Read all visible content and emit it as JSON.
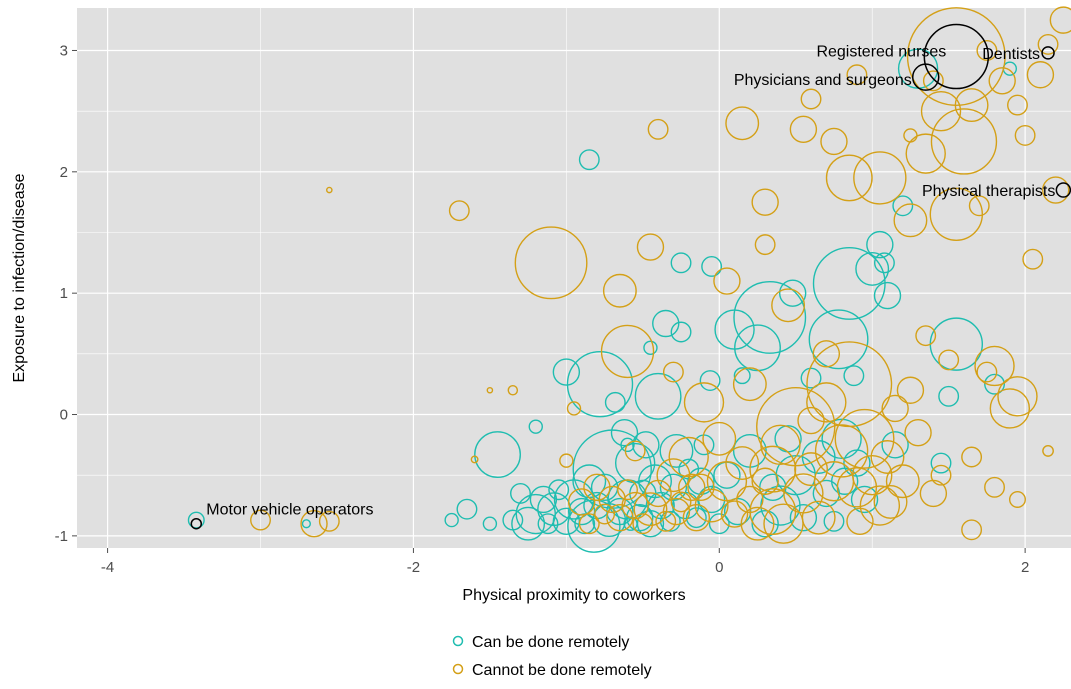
{
  "chart_data": {
    "type": "scatter",
    "xlabel": "Physical proximity to coworkers",
    "ylabel": "Exposure to infection/disease",
    "xlim": [
      -4.2,
      2.3
    ],
    "ylim": [
      -1.1,
      3.35
    ],
    "x_ticks": [
      -4,
      -2,
      0,
      2
    ],
    "x_tick_labels": [
      "-4",
      "-2",
      "0",
      "2"
    ],
    "y_ticks": [
      -1,
      0,
      1,
      2,
      3
    ],
    "y_tick_labels": [
      "-1",
      "0",
      "1",
      "2",
      "3"
    ],
    "grid": true,
    "legend_position": "bottom",
    "colors": {
      "remote": "#1fbdb0",
      "not_remote": "#d4a017",
      "highlight": "#000000",
      "panel": "#e0e0e0",
      "grid": "#ffffff"
    },
    "series": [
      {
        "name": "Can be done remotely",
        "color": "#1fbdb0",
        "points": [
          [
            -3.42,
            -0.87,
            1.2
          ],
          [
            -2.7,
            -0.9,
            0.6
          ],
          [
            -1.75,
            -0.87,
            1.0
          ],
          [
            -1.65,
            -0.78,
            1.5
          ],
          [
            -1.5,
            -0.9,
            1.0
          ],
          [
            -1.45,
            -0.33,
            3.5
          ],
          [
            -1.35,
            -0.87,
            1.5
          ],
          [
            -1.3,
            -0.65,
            1.5
          ],
          [
            -1.25,
            -0.9,
            2.5
          ],
          [
            -1.2,
            -0.82,
            3.0
          ],
          [
            -1.15,
            -0.7,
            2.0
          ],
          [
            -1.12,
            -0.9,
            1.5
          ],
          [
            -1.08,
            -0.78,
            2.5
          ],
          [
            -1.05,
            -0.62,
            1.5
          ],
          [
            -1.0,
            -0.88,
            2.0
          ],
          [
            -0.95,
            -0.7,
            3.0
          ],
          [
            -0.9,
            -0.8,
            2.0
          ],
          [
            -0.88,
            -0.9,
            1.5
          ],
          [
            -0.85,
            -0.55,
            2.5
          ],
          [
            -0.82,
            -0.92,
            4.0
          ],
          [
            -0.8,
            -0.75,
            2.0
          ],
          [
            -0.78,
            0.25,
            5.0
          ],
          [
            -0.75,
            -0.6,
            2.0
          ],
          [
            -0.72,
            -0.87,
            2.5
          ],
          [
            -0.7,
            -0.45,
            6.0
          ],
          [
            -0.68,
            0.1,
            1.5
          ],
          [
            -0.65,
            -0.8,
            2.0
          ],
          [
            -0.62,
            -0.15,
            2.0
          ],
          [
            -0.6,
            -0.7,
            3.0
          ],
          [
            -0.58,
            -0.9,
            1.0
          ],
          [
            -0.55,
            -0.4,
            3.0
          ],
          [
            -0.52,
            -0.85,
            2.0
          ],
          [
            -0.5,
            -0.65,
            2.0
          ],
          [
            -0.48,
            -0.25,
            2.0
          ],
          [
            -0.45,
            -0.9,
            2.0
          ],
          [
            -0.42,
            -0.55,
            2.5
          ],
          [
            -0.4,
            0.15,
            3.5
          ],
          [
            -0.38,
            -0.75,
            2.0
          ],
          [
            -0.35,
            0.75,
            2.0
          ],
          [
            -0.32,
            -0.88,
            1.5
          ],
          [
            -0.3,
            -0.6,
            2.0
          ],
          [
            -0.28,
            -0.3,
            2.5
          ],
          [
            -0.25,
            0.68,
            1.5
          ],
          [
            -0.22,
            -0.75,
            2.0
          ],
          [
            -0.2,
            -0.45,
            1.5
          ],
          [
            -0.15,
            -0.85,
            1.5
          ],
          [
            -0.12,
            -0.55,
            2.0
          ],
          [
            -0.1,
            -0.25,
            1.5
          ],
          [
            -0.06,
            0.28,
            1.5
          ],
          [
            -0.05,
            -0.7,
            2.0
          ],
          [
            0.0,
            -0.9,
            1.5
          ],
          [
            0.05,
            -0.5,
            2.0
          ],
          [
            0.1,
            0.7,
            3.0
          ],
          [
            0.12,
            -0.8,
            2.0
          ],
          [
            0.15,
            0.32,
            1.2
          ],
          [
            0.2,
            -0.3,
            2.5
          ],
          [
            0.25,
            0.55,
            3.5
          ],
          [
            0.3,
            -0.9,
            2.0
          ],
          [
            0.33,
            0.8,
            5.5
          ],
          [
            0.35,
            -0.6,
            2.0
          ],
          [
            0.4,
            -0.75,
            3.0
          ],
          [
            0.45,
            -0.2,
            2.0
          ],
          [
            0.48,
            1.0,
            2.0
          ],
          [
            0.5,
            -0.5,
            3.0
          ],
          [
            0.55,
            -0.85,
            2.0
          ],
          [
            0.6,
            0.3,
            1.5
          ],
          [
            0.65,
            -0.35,
            2.5
          ],
          [
            0.7,
            -0.65,
            2.0
          ],
          [
            0.75,
            -0.88,
            1.5
          ],
          [
            0.78,
            0.62,
            4.5
          ],
          [
            0.8,
            -0.2,
            3.0
          ],
          [
            0.82,
            -0.55,
            2.0
          ],
          [
            0.85,
            1.08,
            5.5
          ],
          [
            0.88,
            0.32,
            1.5
          ],
          [
            0.9,
            -0.4,
            2.0
          ],
          [
            0.95,
            -0.7,
            2.0
          ],
          [
            1.0,
            1.2,
            2.5
          ],
          [
            1.05,
            1.4,
            2.0
          ],
          [
            1.1,
            0.98,
            2.0
          ],
          [
            1.15,
            -0.25,
            2.0
          ],
          [
            1.2,
            1.72,
            1.5
          ],
          [
            1.3,
            2.85,
            3.0
          ],
          [
            1.45,
            -0.4,
            1.5
          ],
          [
            1.5,
            0.15,
            1.5
          ],
          [
            1.55,
            0.58,
            4.0
          ],
          [
            1.8,
            0.25,
            1.5
          ],
          [
            1.9,
            2.85,
            1.0
          ],
          [
            -0.45,
            0.55,
            1.0
          ],
          [
            -0.6,
            -0.25,
            1.0
          ],
          [
            -1.2,
            -0.1,
            1.0
          ],
          [
            -1.0,
            0.35,
            2.0
          ],
          [
            -0.85,
            2.1,
            1.5
          ],
          [
            -0.25,
            1.25,
            1.5
          ],
          [
            -0.05,
            1.22,
            1.5
          ],
          [
            1.08,
            1.25,
            1.5
          ]
        ]
      },
      {
        "name": "Cannot be done remotely",
        "color": "#d4a017",
        "points": [
          [
            -3.0,
            -0.87,
            1.5
          ],
          [
            -2.65,
            -0.9,
            2.0
          ],
          [
            -2.55,
            1.85,
            0.4
          ],
          [
            -2.55,
            -0.88,
            1.5
          ],
          [
            -1.7,
            1.68,
            1.5
          ],
          [
            -1.6,
            -0.37,
            0.5
          ],
          [
            -1.5,
            0.2,
            0.4
          ],
          [
            -1.35,
            0.2,
            0.7
          ],
          [
            -1.0,
            -0.38,
            1.0
          ],
          [
            -0.95,
            0.05,
            1.0
          ],
          [
            -0.9,
            -0.72,
            2.0
          ],
          [
            -0.85,
            -0.9,
            1.5
          ],
          [
            -0.8,
            -0.6,
            2.0
          ],
          [
            -0.75,
            -0.82,
            1.5
          ],
          [
            -0.7,
            -0.7,
            2.0
          ],
          [
            -0.65,
            -0.85,
            2.0
          ],
          [
            -0.6,
            -0.62,
            1.5
          ],
          [
            -0.55,
            -0.75,
            2.0
          ],
          [
            -0.5,
            -0.9,
            1.5
          ],
          [
            -0.45,
            -0.78,
            2.5
          ],
          [
            -0.4,
            -0.65,
            2.0
          ],
          [
            -0.35,
            -0.88,
            1.5
          ],
          [
            -0.3,
            -0.5,
            2.5
          ],
          [
            -0.28,
            -0.8,
            2.0
          ],
          [
            -0.25,
            -0.72,
            1.5
          ],
          [
            -0.2,
            -0.35,
            3.0
          ],
          [
            -0.15,
            -0.85,
            2.0
          ],
          [
            -0.12,
            -0.6,
            2.0
          ],
          [
            -0.1,
            0.1,
            3.0
          ],
          [
            -0.05,
            -0.75,
            2.5
          ],
          [
            0.0,
            -0.2,
            2.5
          ],
          [
            0.05,
            -0.55,
            3.0
          ],
          [
            0.1,
            -0.82,
            2.0
          ],
          [
            0.15,
            -0.4,
            2.5
          ],
          [
            0.2,
            -0.7,
            2.0
          ],
          [
            0.25,
            -0.9,
            2.5
          ],
          [
            0.3,
            -0.55,
            2.0
          ],
          [
            0.35,
            -0.8,
            3.5
          ],
          [
            0.4,
            -0.25,
            3.0
          ],
          [
            0.45,
            0.9,
            2.5
          ],
          [
            0.5,
            -0.1,
            6.0
          ],
          [
            0.55,
            -0.65,
            3.0
          ],
          [
            0.6,
            -0.45,
            2.5
          ],
          [
            0.65,
            -0.85,
            2.5
          ],
          [
            0.7,
            0.5,
            2.0
          ],
          [
            0.75,
            -0.55,
            3.0
          ],
          [
            0.8,
            -0.3,
            4.0
          ],
          [
            0.85,
            0.25,
            6.5
          ],
          [
            0.9,
            -0.6,
            3.0
          ],
          [
            0.95,
            -0.2,
            4.5
          ],
          [
            1.0,
            -0.5,
            3.0
          ],
          [
            1.05,
            -0.75,
            3.0
          ],
          [
            1.1,
            -0.35,
            2.5
          ],
          [
            1.15,
            0.05,
            2.0
          ],
          [
            1.2,
            -0.55,
            2.5
          ],
          [
            1.25,
            0.2,
            2.0
          ],
          [
            1.3,
            -0.15,
            2.0
          ],
          [
            1.35,
            0.65,
            1.5
          ],
          [
            1.4,
            -0.65,
            2.0
          ],
          [
            1.45,
            -0.5,
            1.5
          ],
          [
            1.5,
            0.45,
            1.5
          ],
          [
            1.55,
            1.65,
            4.0
          ],
          [
            1.6,
            2.25,
            5.0
          ],
          [
            1.65,
            -0.35,
            1.5
          ],
          [
            1.7,
            1.72,
            1.5
          ],
          [
            1.75,
            0.35,
            1.5
          ],
          [
            1.8,
            0.4,
            3.0
          ],
          [
            1.85,
            2.75,
            2.0
          ],
          [
            1.9,
            0.05,
            3.0
          ],
          [
            1.95,
            0.15,
            3.0
          ],
          [
            2.0,
            2.3,
            1.5
          ],
          [
            2.05,
            1.28,
            1.5
          ],
          [
            2.1,
            2.8,
            2.0
          ],
          [
            2.15,
            3.05,
            1.5
          ],
          [
            2.2,
            1.85,
            2.0
          ],
          [
            2.25,
            3.25,
            2.0
          ],
          [
            1.55,
            2.95,
            7.5
          ],
          [
            1.45,
            2.5,
            3.0
          ],
          [
            1.65,
            2.55,
            2.5
          ],
          [
            1.35,
            2.15,
            3.0
          ],
          [
            1.25,
            1.6,
            2.5
          ],
          [
            1.05,
            1.95,
            4.0
          ],
          [
            0.85,
            1.95,
            3.5
          ],
          [
            0.75,
            2.25,
            2.0
          ],
          [
            0.55,
            2.35,
            2.0
          ],
          [
            0.3,
            1.75,
            2.0
          ],
          [
            0.15,
            2.4,
            2.5
          ],
          [
            -0.4,
            2.35,
            1.5
          ],
          [
            -1.1,
            1.25,
            5.5
          ],
          [
            -0.65,
            1.02,
            2.5
          ],
          [
            -0.45,
            1.38,
            2.0
          ],
          [
            0.05,
            1.1,
            2.0
          ],
          [
            0.3,
            1.4,
            1.5
          ],
          [
            0.2,
            0.25,
            2.5
          ],
          [
            -0.3,
            0.35,
            1.5
          ],
          [
            -0.6,
            0.52,
            4.0
          ],
          [
            1.95,
            -0.7,
            1.2
          ],
          [
            2.15,
            -0.3,
            0.8
          ],
          [
            1.8,
            -0.6,
            1.5
          ],
          [
            1.65,
            -0.95,
            1.5
          ],
          [
            -0.55,
            -0.3,
            1.5
          ],
          [
            0.6,
            -0.05,
            2.0
          ],
          [
            0.7,
            0.1,
            3.0
          ],
          [
            0.35,
            -0.45,
            3.5
          ],
          [
            -0.18,
            -0.6,
            2.0
          ],
          [
            0.42,
            -0.9,
            3.0
          ],
          [
            0.92,
            -0.88,
            2.0
          ],
          [
            1.12,
            -0.72,
            2.5
          ],
          [
            0.6,
            2.6,
            1.5
          ],
          [
            1.95,
            2.55,
            1.5
          ],
          [
            1.75,
            3.0,
            1.5
          ],
          [
            1.4,
            2.75,
            1.5
          ],
          [
            1.25,
            2.3,
            1.0
          ],
          [
            0.9,
            2.8,
            1.5
          ]
        ]
      }
    ],
    "highlighted": [
      {
        "label": "Motor vehicle operators",
        "x": -3.42,
        "y": -0.9
      },
      {
        "label": "Dentists",
        "x": 2.15,
        "y": 2.98
      },
      {
        "label": "Registered nurses",
        "x": 1.55,
        "y": 2.95
      },
      {
        "label": "Physicians and surgeons",
        "x": 1.35,
        "y": 2.78
      },
      {
        "label": "Physical therapists",
        "x": 2.25,
        "y": 1.85
      }
    ],
    "legend": [
      "Can be done remotely",
      "Cannot be done remotely"
    ]
  }
}
